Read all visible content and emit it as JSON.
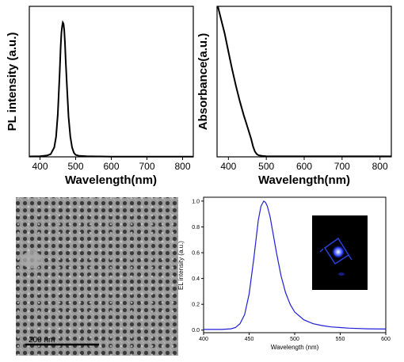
{
  "chart_data": [
    {
      "type": "line",
      "panel": "top-left",
      "xlabel": "Wavelength(nm)",
      "ylabel": "PL intensity (a.u.)",
      "xlim": [
        370,
        830
      ],
      "ylim": [
        0,
        1.12
      ],
      "xticks": [
        400,
        500,
        600,
        700,
        800
      ],
      "xtick_labels": [
        "400",
        "500",
        "600",
        "700",
        "800"
      ],
      "y_tick_labels": false,
      "grid": false,
      "series": [
        {
          "color": "#000000",
          "x": [
            370,
            400,
            420,
            430,
            440,
            445,
            450,
            455,
            458,
            460,
            462,
            464,
            466,
            468,
            470,
            472,
            475,
            480,
            485,
            490,
            495,
            500,
            510,
            530,
            560,
            600,
            700,
            830
          ],
          "y": [
            0.003,
            0.005,
            0.01,
            0.02,
            0.07,
            0.15,
            0.32,
            0.62,
            0.82,
            0.92,
            0.97,
            1.0,
            0.99,
            0.94,
            0.85,
            0.72,
            0.55,
            0.3,
            0.15,
            0.07,
            0.03,
            0.015,
            0.007,
            0.004,
            0.003,
            0.002,
            0.002,
            0.002
          ]
        }
      ]
    },
    {
      "type": "line",
      "panel": "top-right",
      "xlabel": "Wavelength(nm)",
      "ylabel": "Absorbance(a.u.)",
      "xlim": [
        370,
        830
      ],
      "ylim": [
        0,
        1.0
      ],
      "xticks": [
        400,
        500,
        600,
        700,
        800
      ],
      "xtick_labels": [
        "400",
        "500",
        "600",
        "700",
        "800"
      ],
      "y_tick_labels": false,
      "grid": false,
      "series": [
        {
          "color": "#000000",
          "x": [
            372,
            380,
            390,
            400,
            410,
            420,
            430,
            440,
            450,
            460,
            465,
            470,
            475,
            480,
            490,
            500,
            550,
            600,
            700,
            830
          ],
          "y": [
            1.0,
            0.92,
            0.82,
            0.7,
            0.58,
            0.47,
            0.37,
            0.28,
            0.2,
            0.12,
            0.07,
            0.035,
            0.018,
            0.01,
            0.006,
            0.004,
            0.003,
            0.003,
            0.003,
            0.003
          ]
        }
      ]
    },
    {
      "type": "line",
      "panel": "bottom-right",
      "xlabel": "Wavelength (nm)",
      "ylabel": "EL intensity (a.u.)",
      "xlim": [
        400,
        600
      ],
      "ylim": [
        -0.02,
        1.03
      ],
      "xticks": [
        400,
        450,
        500,
        550,
        600
      ],
      "xtick_labels": [
        "400",
        "450",
        "500",
        "550",
        "600"
      ],
      "yticks": [
        0.0,
        0.2,
        0.4,
        0.6,
        0.8,
        1.0
      ],
      "ytick_labels": [
        "0.0",
        "0.2",
        "0.4",
        "0.6",
        "0.8",
        "1.0"
      ],
      "grid": false,
      "series": [
        {
          "color": "#1f1fd6",
          "x": [
            400,
            420,
            430,
            435,
            440,
            445,
            450,
            455,
            460,
            463,
            466,
            468,
            470,
            473,
            476,
            480,
            485,
            490,
            495,
            500,
            510,
            520,
            530,
            540,
            550,
            560,
            580,
            600
          ],
          "y": [
            0.005,
            0.005,
            0.01,
            0.02,
            0.05,
            0.12,
            0.28,
            0.55,
            0.85,
            0.96,
            1.0,
            0.99,
            0.96,
            0.88,
            0.76,
            0.6,
            0.42,
            0.29,
            0.2,
            0.14,
            0.08,
            0.05,
            0.035,
            0.025,
            0.02,
            0.015,
            0.01,
            0.008
          ]
        }
      ]
    }
  ],
  "micrograph": {
    "scale_label": "200 nm"
  },
  "colors": {
    "axis": "#000000",
    "pl_line": "#000000",
    "abs_line": "#000000",
    "el_line": "#1f1fd6",
    "micrograph_bg": "#8a8a8a",
    "inset_bg": "#000000",
    "inset_glow": "#3a5cff"
  }
}
